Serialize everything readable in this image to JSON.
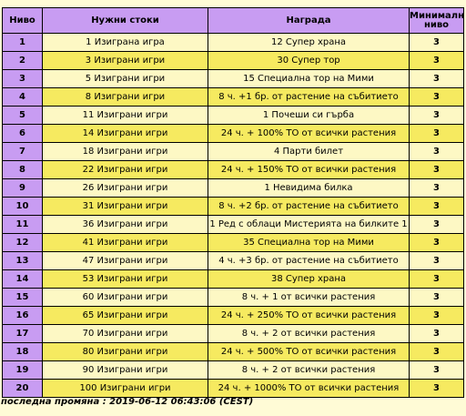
{
  "table": {
    "headers": {
      "level": "Ниво",
      "needed": "Нужни стоки",
      "reward": "Награда",
      "min_level_line1": "Минимално",
      "min_level_line2": "ниво"
    },
    "rows": [
      {
        "level": "1",
        "needed": "1 Изиграна игра",
        "reward": "12 Супер храна",
        "min": "3"
      },
      {
        "level": "2",
        "needed": "3 Изиграни игри",
        "reward": "30 Супер тор",
        "min": "3"
      },
      {
        "level": "3",
        "needed": "5 Изиграни игри",
        "reward": "15 Специална тор на Мими",
        "min": "3"
      },
      {
        "level": "4",
        "needed": "8 Изиграни игри",
        "reward": "8 ч. +1 бр. от растение на събитието",
        "min": "3"
      },
      {
        "level": "5",
        "needed": "11 Изиграни игри",
        "reward": "1 Почеши си гърба",
        "min": "3"
      },
      {
        "level": "6",
        "needed": "14 Изиграни игри",
        "reward": "24 ч. + 100% ТО от всички растения",
        "min": "3"
      },
      {
        "level": "7",
        "needed": "18 Изиграни игри",
        "reward": "4 Парти билет",
        "min": "3"
      },
      {
        "level": "8",
        "needed": "22 Изиграни игри",
        "reward": "24 ч. + 150% ТО от всички растения",
        "min": "3"
      },
      {
        "level": "9",
        "needed": "26 Изиграни игри",
        "reward": "1 Невидима билка",
        "min": "3"
      },
      {
        "level": "10",
        "needed": "31 Изиграни игри",
        "reward": "8 ч. +2 бр. от растение на събитието",
        "min": "3"
      },
      {
        "level": "11",
        "needed": "36 Изиграни игри",
        "reward": "1 Ред с облаци Мистерията на билките 1",
        "min": "3"
      },
      {
        "level": "12",
        "needed": "41 Изиграни игри",
        "reward": "35 Специална тор на Мими",
        "min": "3"
      },
      {
        "level": "13",
        "needed": "47 Изиграни игри",
        "reward": "4 ч. +3 бр. от растение на събитието",
        "min": "3"
      },
      {
        "level": "14",
        "needed": "53 Изиграни игри",
        "reward": "38 Супер храна",
        "min": "3"
      },
      {
        "level": "15",
        "needed": "60 Изиграни игри",
        "reward": "8 ч. + 1 от всички растения",
        "min": "3"
      },
      {
        "level": "16",
        "needed": "65 Изиграни игри",
        "reward": "24 ч. + 250% ТО от всички растения",
        "min": "3"
      },
      {
        "level": "17",
        "needed": "70 Изиграни игри",
        "reward": "8 ч. + 2 от всички растения",
        "min": "3"
      },
      {
        "level": "18",
        "needed": "80 Изиграни игри",
        "reward": "24 ч. + 500% ТО от всички растения",
        "min": "3"
      },
      {
        "level": "19",
        "needed": "90 Изиграни игри",
        "reward": "8 ч. + 2 от всички растения",
        "min": "3"
      },
      {
        "level": "20",
        "needed": "100 Изиграни игри",
        "reward": "24 ч. + 1000% ТО от всички растения",
        "min": "3"
      }
    ]
  },
  "footer": {
    "last_change": "последна промяна : 2019-06-12 06:43:06 (CEST)"
  },
  "colors": {
    "header_bg": "#c89cf2",
    "row_light": "#fdf8c4",
    "row_yellow": "#f6ea60",
    "page_bg": "#fffbd6"
  }
}
